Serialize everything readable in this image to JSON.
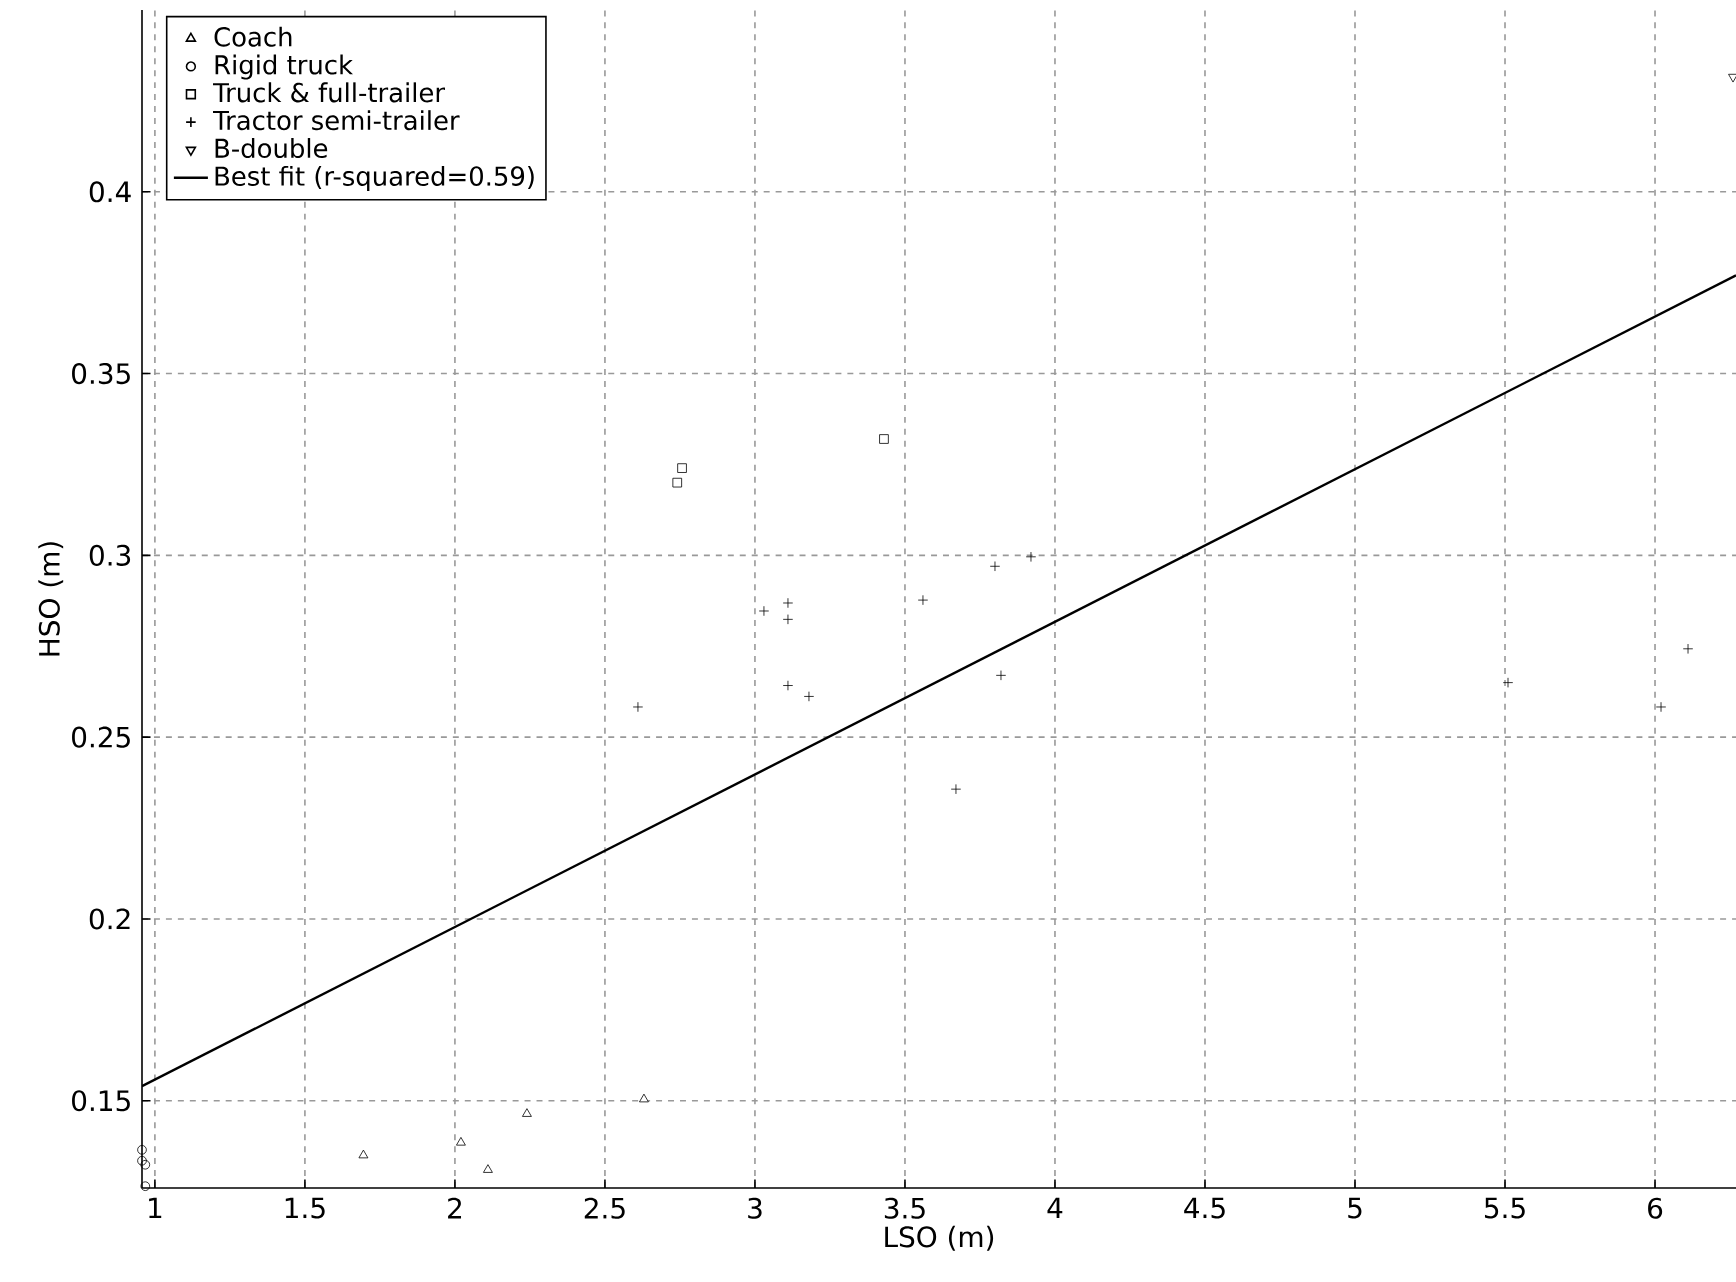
{
  "chart_data": {
    "type": "scatter",
    "xlabel": "LSO (m)",
    "ylabel": "HSO (m)",
    "xlim": [
      0.957,
      6.27
    ],
    "ylim": [
      0.126,
      0.45
    ],
    "xticks": [
      1,
      1.5,
      2,
      2.5,
      3,
      3.5,
      4,
      4.5,
      5,
      5.5,
      6
    ],
    "yticks": [
      0.15,
      0.2,
      0.25,
      0.3,
      0.35,
      0.4
    ],
    "grid": true,
    "legend": "top left",
    "series": [
      {
        "name": "Coach",
        "color": "#000000",
        "marker": "triangle",
        "x": [
          1.695,
          2.02,
          2.11,
          2.24,
          2.63
        ],
        "values": [
          0.135,
          0.1385,
          0.131,
          0.1464,
          0.1504
        ]
      },
      {
        "name": "Rigid truck",
        "color": "#000000",
        "marker": "circle",
        "x": [
          0.957,
          0.957,
          0.968,
          0.968
        ],
        "values": [
          0.1365,
          0.1335,
          0.1324,
          0.1265
        ]
      },
      {
        "name": "Truck & full-trailer",
        "color": "#000000",
        "marker": "square",
        "x": [
          2.757,
          2.741,
          3.43
        ],
        "values": [
          0.324,
          0.32,
          0.332
        ]
      },
      {
        "name": "Tractor semi-trailer",
        "color": "#000000",
        "marker": "plus",
        "x": [
          2.61,
          3.03,
          3.11,
          3.11,
          3.11,
          3.18,
          3.56,
          3.8,
          3.92,
          3.82,
          3.67,
          5.51,
          6.02,
          6.11
        ],
        "values": [
          0.2583,
          0.2847,
          0.2869,
          0.2824,
          0.2642,
          0.2612,
          0.2877,
          0.297,
          0.2996,
          0.267,
          0.2357,
          0.265,
          0.2583,
          0.2743
        ]
      },
      {
        "name": "B-double",
        "color": "#000000",
        "marker": "triangle_down",
        "x": [
          6.26
        ],
        "values": [
          0.4316
        ]
      },
      {
        "name": "Best fit (r-squared=0.59)",
        "color": "#000000",
        "type": "line",
        "marker": "none",
        "line_style": "solid",
        "x": [
          0.957,
          6.27
        ],
        "values": [
          0.154,
          0.377
        ]
      }
    ]
  }
}
